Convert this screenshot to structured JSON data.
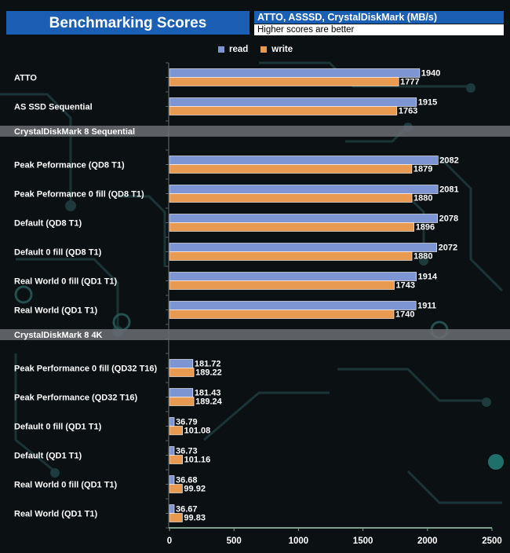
{
  "header": {
    "title": "Benchmarking Scores",
    "subtitle": "ATTO, ASSSD, CrystalDiskMark (MB/s)",
    "note": "Higher scores are better"
  },
  "colors": {
    "read": "#7d95d3",
    "write": "#e99a51",
    "section_band": "#6b6f73"
  },
  "chart_data": {
    "type": "bar",
    "orientation": "horizontal",
    "title": "Benchmarking Scores",
    "subtitle": "ATTO, ASSSD, CrystalDiskMark (MB/s)",
    "note": "Higher scores are better",
    "xlim": [
      0,
      2500
    ],
    "x_ticks": [
      0,
      500,
      1000,
      1500,
      2000,
      2500
    ],
    "legend": {
      "position": "top-center",
      "entries": [
        "read",
        "write"
      ]
    },
    "rows": [
      {
        "kind": "group",
        "label": "ATTO",
        "read": 1940,
        "write": 1777,
        "read_label": "1940",
        "write_label": "1777"
      },
      {
        "kind": "group",
        "label": "AS SSD Sequential",
        "read": 1915,
        "write": 1763,
        "read_label": "1915",
        "write_label": "1763"
      },
      {
        "kind": "section",
        "label": "CrystalDiskMark 8 Sequential"
      },
      {
        "kind": "group",
        "label": "Peak Peformance (QD8 T1)",
        "read": 2082,
        "write": 1879,
        "read_label": "2082",
        "write_label": "1879"
      },
      {
        "kind": "group",
        "label": "Peak Peformance 0 fill (QD8 T1)",
        "read": 2081,
        "write": 1880,
        "read_label": "2081",
        "write_label": "1880"
      },
      {
        "kind": "group",
        "label": "Default (QD8 T1)",
        "read": 2078,
        "write": 1896,
        "read_label": "2078",
        "write_label": "1896"
      },
      {
        "kind": "group",
        "label": "Default 0 fill (QD8 T1)",
        "read": 2072,
        "write": 1880,
        "read_label": "2072",
        "write_label": "1880"
      },
      {
        "kind": "group",
        "label": "Real World 0 fill (QD1 T1)",
        "read": 1914,
        "write": 1743,
        "read_label": "1914",
        "write_label": "1743"
      },
      {
        "kind": "group",
        "label": "Real World (QD1 T1)",
        "read": 1911,
        "write": 1740,
        "read_label": "1911",
        "write_label": "1740"
      },
      {
        "kind": "section",
        "label": "CrystalDiskMark 8 4K"
      },
      {
        "kind": "group",
        "label": "Peak Performance 0 fill (QD32 T16)",
        "read": 181.72,
        "write": 189.22,
        "read_label": "181.72",
        "write_label": "189.22"
      },
      {
        "kind": "group",
        "label": "Peak Performance (QD32 T16)",
        "read": 181.43,
        "write": 189.24,
        "read_label": "181.43",
        "write_label": "189.24"
      },
      {
        "kind": "group",
        "label": "Default 0 fill (QD1 T1)",
        "read": 36.79,
        "write": 101.08,
        "read_label": "36.79",
        "write_label": "101.08"
      },
      {
        "kind": "group",
        "label": "Default (QD1 T1)",
        "read": 36.73,
        "write": 101.16,
        "read_label": "36.73",
        "write_label": "101.16"
      },
      {
        "kind": "group",
        "label": "Real World 0 fill  (QD1 T1)",
        "read": 36.68,
        "write": 99.92,
        "read_label": "36.68",
        "write_label": "99.92"
      },
      {
        "kind": "group",
        "label": "Real World  (QD1 T1)",
        "read": 36.67,
        "write": 99.83,
        "read_label": "36.67",
        "write_label": "99.83"
      }
    ]
  }
}
